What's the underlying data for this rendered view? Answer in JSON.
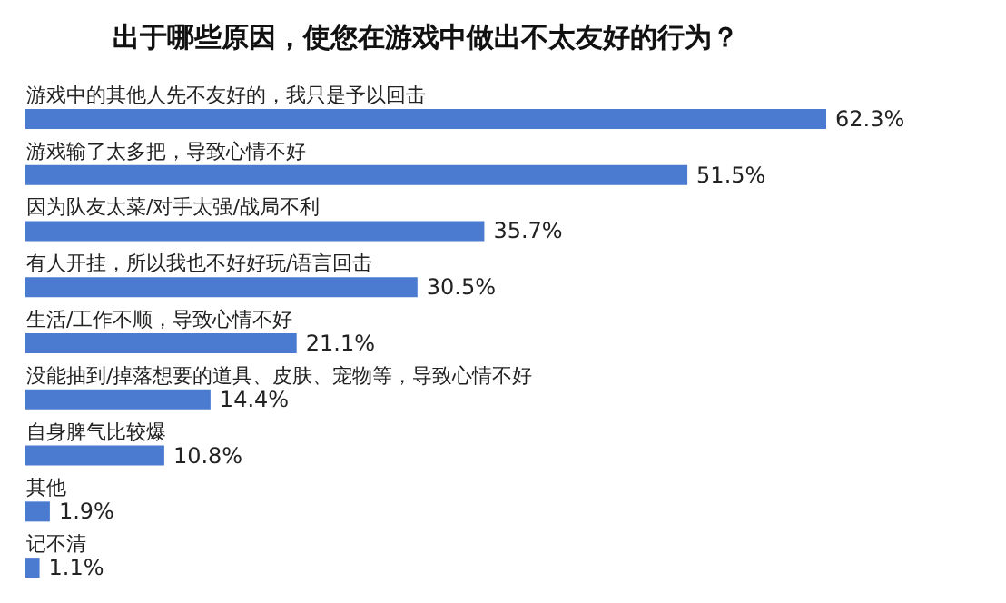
{
  "chart_data": {
    "type": "bar",
    "orientation": "horizontal",
    "title": "出于哪些原因，使您在游戏中做出不太友好的行为？",
    "categories": [
      "游戏中的其他人先不友好的，我只是予以回击",
      "游戏输了太多把，导致心情不好",
      "因为队友太菜/对手太强/战局不利",
      "有人开挂，所以我也不好好玩/语言回击",
      "生活/工作不顺，导致心情不好",
      "没能抽到/掉落想要的道具、皮肤、宠物等，导致心情不好",
      "自身脾气比较爆",
      "其他",
      "记不清"
    ],
    "values": [
      62.3,
      51.5,
      35.7,
      30.5,
      21.1,
      14.4,
      10.8,
      1.9,
      1.1
    ],
    "value_labels": [
      "62.3%",
      "51.5%",
      "35.7%",
      "30.5%",
      "21.1%",
      "14.4%",
      "10.8%",
      "1.9%",
      "1.1%"
    ],
    "color": "#4a7bd0"
  }
}
